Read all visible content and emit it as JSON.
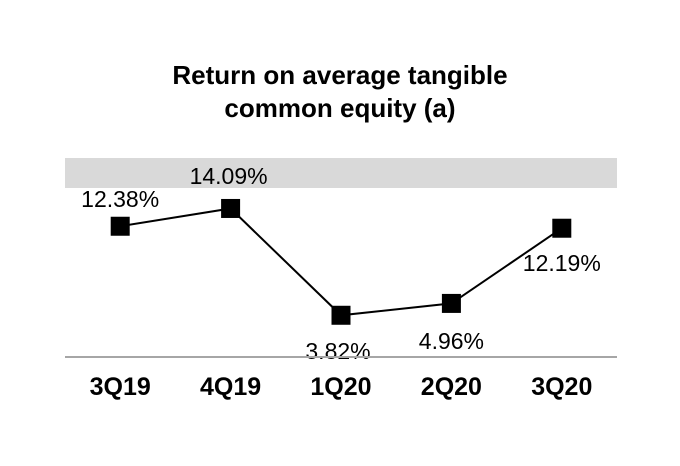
{
  "title": {
    "line1": "Return on average tangible",
    "line2": "common equity (a)"
  },
  "chart_data": {
    "type": "line",
    "title": "Return on average tangible common equity (a)",
    "categories": [
      "3Q19",
      "4Q19",
      "1Q20",
      "2Q20",
      "3Q20"
    ],
    "series": [
      {
        "name": "Return on average tangible common equity",
        "values": [
          12.38,
          14.09,
          3.82,
          4.96,
          12.19
        ]
      }
    ],
    "data_labels": [
      "12.38%",
      "14.09%",
      "3.82%",
      "4.96%",
      "12.19%"
    ],
    "data_label_positions": [
      "above",
      "above",
      "below",
      "below",
      "below"
    ],
    "xlabel": "",
    "ylabel": "",
    "ylim": [
      0,
      19
    ],
    "grid": false,
    "legend": false,
    "marker": "square",
    "highlight_band": {
      "y_from": 16.06,
      "y_to": 18.94
    },
    "colors": {
      "series": "#000000",
      "marker": "#000000",
      "band": "#d9d9d9",
      "axis_line": "#a6a6a6",
      "text": "#000000",
      "background": "#ffffff"
    }
  }
}
